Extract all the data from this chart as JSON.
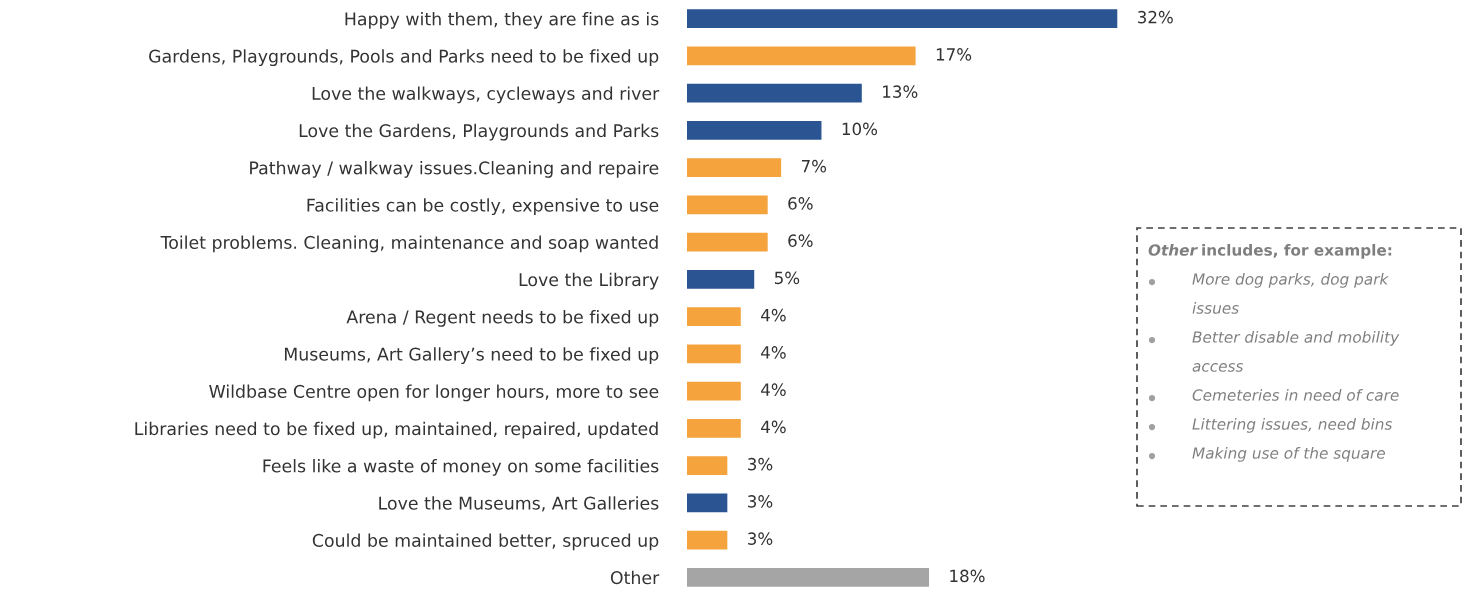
{
  "chart_data": {
    "type": "bar",
    "orientation": "horizontal",
    "categories": [
      "Happy with them, they are fine as is",
      "Gardens, Playgrounds, Pools and Parks need to be fixed up",
      "Love the walkways, cycleways and river",
      "Love the Gardens, Playgrounds and Parks",
      "Pathway / walkway issues.Cleaning and repaire",
      "Facilities can be costly, expensive to use",
      "Toilet problems. Cleaning, maintenance and soap wanted",
      "Love the Library",
      "Arena / Regent needs to be fixed up",
      "Museums, Art Gallery’s need to be fixed up",
      "Wildbase Centre open for longer hours, more to see",
      "Libraries need to be fixed up, maintained, repaired, updated",
      "Feels like a waste of money on some facilities",
      "Love the Museums, Art Galleries",
      "Could be maintained better, spruced up",
      "Other"
    ],
    "values": [
      32,
      17,
      13,
      10,
      7,
      6,
      6,
      5,
      4,
      4,
      4,
      4,
      3,
      3,
      3,
      18
    ],
    "value_labels": [
      "32%",
      "17%",
      "13%",
      "10%",
      "7%",
      "6%",
      "6%",
      "5%",
      "4%",
      "4%",
      "4%",
      "4%",
      "3%",
      "3%",
      "3%",
      "18%"
    ],
    "colors": [
      "#2a5592",
      "#f5a33c",
      "#2a5592",
      "#2a5592",
      "#f5a33c",
      "#f5a33c",
      "#f5a33c",
      "#2a5592",
      "#f5a33c",
      "#f5a33c",
      "#f5a33c",
      "#f5a33c",
      "#f5a33c",
      "#2a5592",
      "#f5a33c",
      "#a5a5a5"
    ],
    "annotations": [
      "Other includes, for example:",
      "More dog parks, dog park issues",
      "Better disable and mobility access",
      "Cemeteries in need of care",
      "Littering issues, need bins",
      "Making use of the square"
    ],
    "grid": false,
    "legend": false
  }
}
